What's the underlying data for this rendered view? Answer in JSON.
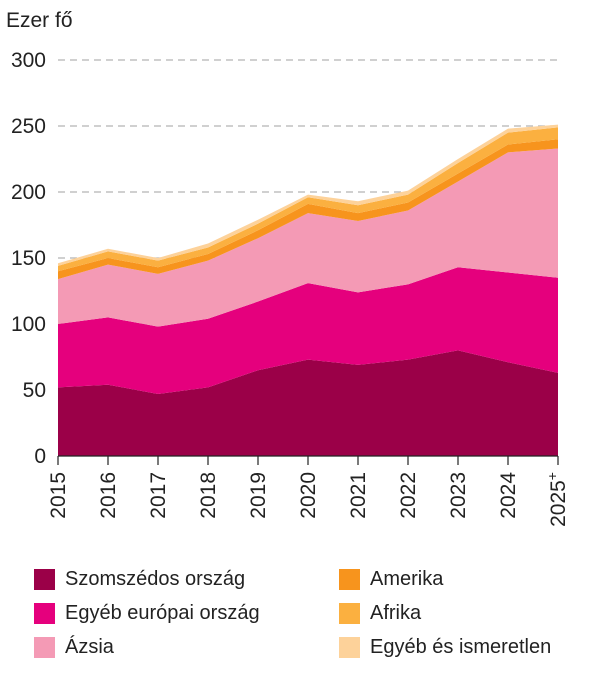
{
  "chart_data": {
    "type": "area",
    "stacked": true,
    "title": "",
    "unit_label": "Ezer fő",
    "xlabel": "",
    "ylabel": "",
    "ylim": [
      0,
      300
    ],
    "y_ticks": [
      "0",
      "50",
      "100",
      "150",
      "200",
      "250",
      "300"
    ],
    "categories": [
      "2015",
      "2016",
      "2017",
      "2018",
      "2019",
      "2020",
      "2021",
      "2022",
      "2023",
      "2024",
      "2025+"
    ],
    "grid": true,
    "legend_position": "bottom",
    "series": [
      {
        "name": "Szomszédos ország",
        "color": "#9b0048",
        "values": [
          52,
          54,
          47,
          52,
          65,
          73,
          69,
          73,
          80,
          71,
          63
        ]
      },
      {
        "name": "Egyéb európai ország",
        "color": "#e5007d",
        "values": [
          48,
          51,
          51,
          52,
          52,
          58,
          55,
          57,
          63,
          68,
          72
        ]
      },
      {
        "name": "Ázsia",
        "color": "#f49ab5",
        "values": [
          34,
          40,
          40,
          44,
          48,
          53,
          54,
          56,
          65,
          91,
          98
        ]
      },
      {
        "name": "Amerika",
        "color": "#f7941d",
        "values": [
          6,
          5,
          5,
          5,
          6,
          7,
          6,
          6,
          6,
          6,
          7
        ]
      },
      {
        "name": "Afrika",
        "color": "#fbb040",
        "values": [
          4,
          5,
          5,
          5,
          5,
          5,
          6,
          6,
          8,
          9,
          9
        ]
      },
      {
        "name": "Egyéb és ismeretlen",
        "color": "#fdd29a",
        "values": [
          2,
          2,
          2,
          3,
          3,
          2,
          3,
          3,
          3,
          3,
          2
        ]
      }
    ]
  }
}
